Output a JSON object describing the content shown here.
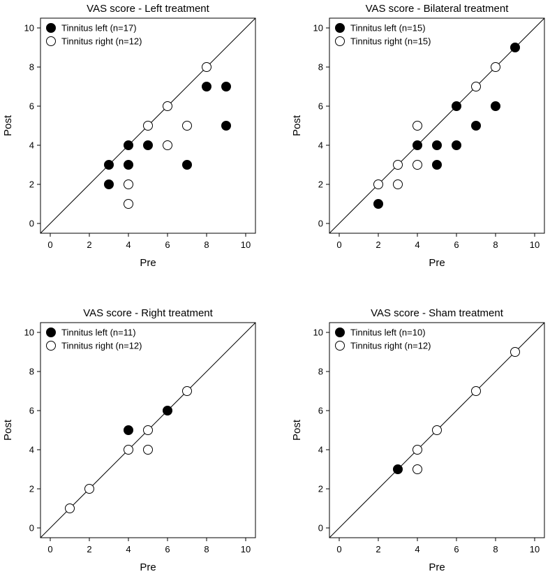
{
  "colors": {
    "filled": "#000000",
    "open": "#ffffff",
    "stroke": "#000000"
  },
  "chart_data": [
    {
      "type": "scatter",
      "title": "VAS score - Left treatment",
      "xlabel": "Pre",
      "ylabel": "Post",
      "xlim": [
        -0.5,
        10.5
      ],
      "ylim": [
        -0.5,
        10.5
      ],
      "xticks": [
        0,
        2,
        4,
        6,
        8,
        10
      ],
      "yticks": [
        0,
        2,
        4,
        6,
        8,
        10
      ],
      "identity_line": true,
      "legend_position": "top-left",
      "series": [
        {
          "name": "Tinnitus left (n=17)",
          "marker": "filled",
          "points": [
            [
              3,
              3
            ],
            [
              3,
              2
            ],
            [
              4,
              4
            ],
            [
              4,
              3
            ],
            [
              5,
              4
            ],
            [
              7,
              3
            ],
            [
              8,
              7
            ],
            [
              9,
              7
            ],
            [
              9,
              5
            ]
          ]
        },
        {
          "name": "Tinnitus right (n=12)",
          "marker": "open",
          "points": [
            [
              4,
              2
            ],
            [
              4,
              1
            ],
            [
              5,
              5
            ],
            [
              6,
              6
            ],
            [
              6,
              4
            ],
            [
              7,
              5
            ],
            [
              8,
              8
            ]
          ]
        }
      ]
    },
    {
      "type": "scatter",
      "title": "VAS score - Bilateral treatment",
      "xlabel": "Pre",
      "ylabel": "Post",
      "xlim": [
        -0.5,
        10.5
      ],
      "ylim": [
        -0.5,
        10.5
      ],
      "xticks": [
        0,
        2,
        4,
        6,
        8,
        10
      ],
      "yticks": [
        0,
        2,
        4,
        6,
        8,
        10
      ],
      "identity_line": true,
      "legend_position": "top-left",
      "series": [
        {
          "name": "Tinnitus left (n=15)",
          "marker": "filled",
          "points": [
            [
              2,
              1
            ],
            [
              4,
              4
            ],
            [
              5,
              4
            ],
            [
              5,
              3
            ],
            [
              6,
              6
            ],
            [
              6,
              4
            ],
            [
              7,
              5
            ],
            [
              8,
              6
            ],
            [
              9,
              9
            ]
          ]
        },
        {
          "name": "Tinnitus right (n=15)",
          "marker": "open",
          "points": [
            [
              2,
              2
            ],
            [
              3,
              3
            ],
            [
              3,
              2
            ],
            [
              4,
              5
            ],
            [
              4,
              3
            ],
            [
              7,
              7
            ],
            [
              8,
              8
            ]
          ]
        }
      ]
    },
    {
      "type": "scatter",
      "title": "VAS score - Right treatment",
      "xlabel": "Pre",
      "ylabel": "Post",
      "xlim": [
        -0.5,
        10.5
      ],
      "ylim": [
        -0.5,
        10.5
      ],
      "xticks": [
        0,
        2,
        4,
        6,
        8,
        10
      ],
      "yticks": [
        0,
        2,
        4,
        6,
        8,
        10
      ],
      "identity_line": true,
      "legend_position": "top-left",
      "series": [
        {
          "name": "Tinnitus left (n=11)",
          "marker": "filled",
          "points": [
            [
              4,
              5
            ],
            [
              6,
              6
            ]
          ]
        },
        {
          "name": "Tinnitus right (n=12)",
          "marker": "open",
          "points": [
            [
              1,
              1
            ],
            [
              2,
              2
            ],
            [
              4,
              4
            ],
            [
              5,
              5
            ],
            [
              5,
              4
            ],
            [
              7,
              7
            ]
          ]
        }
      ]
    },
    {
      "type": "scatter",
      "title": "VAS score - Sham treatment",
      "xlabel": "Pre",
      "ylabel": "Post",
      "xlim": [
        -0.5,
        10.5
      ],
      "ylim": [
        -0.5,
        10.5
      ],
      "xticks": [
        0,
        2,
        4,
        6,
        8,
        10
      ],
      "yticks": [
        0,
        2,
        4,
        6,
        8,
        10
      ],
      "identity_line": true,
      "legend_position": "top-left",
      "series": [
        {
          "name": "Tinnitus left (n=10)",
          "marker": "filled",
          "points": [
            [
              3,
              3
            ]
          ]
        },
        {
          "name": "Tinnitus right (n=12)",
          "marker": "open",
          "points": [
            [
              4,
              4
            ],
            [
              4,
              3
            ],
            [
              5,
              5
            ],
            [
              7,
              7
            ],
            [
              9,
              9
            ]
          ]
        }
      ]
    }
  ]
}
